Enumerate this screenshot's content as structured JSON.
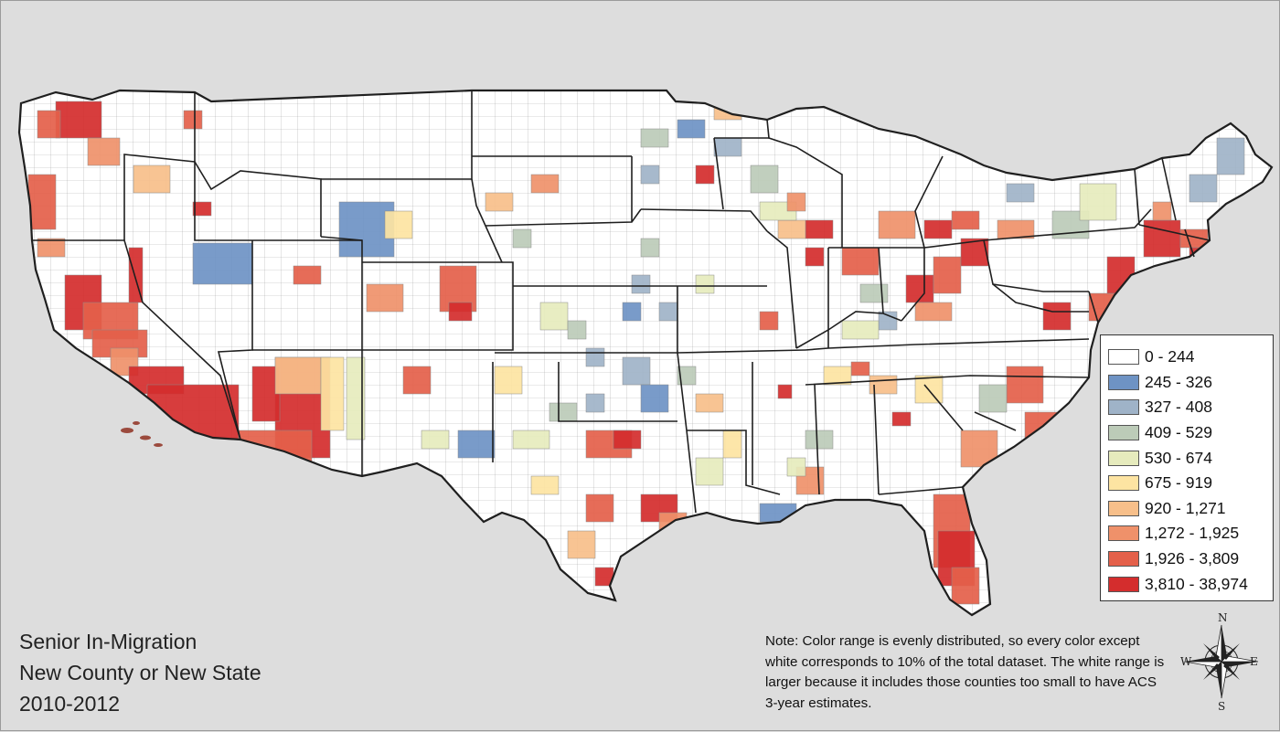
{
  "map": {
    "title_lines": [
      "Senior In-Migration",
      "New County or New State",
      "2010-2012"
    ],
    "note": "Note: Color range is evenly distributed, so every color except white corresponds to 10% of the total dataset. The white range is larger because it includes those counties too small to have ACS 3-year estimates.",
    "background_color": "#dcdcdc",
    "land_color": "#ffffff",
    "border_color": "#1f1f1f",
    "county_line_color": "#9a9a9a"
  },
  "legend": {
    "classes": [
      {
        "label": "0 - 244",
        "color": "#ffffff"
      },
      {
        "label": "245 - 326",
        "color": "#6e93c4"
      },
      {
        "label": "327 - 408",
        "color": "#9fb3c8"
      },
      {
        "label": "409 - 529",
        "color": "#bccbb8"
      },
      {
        "label": "530 - 674",
        "color": "#e6ebbd"
      },
      {
        "label": "675 - 919",
        "color": "#fde4a2"
      },
      {
        "label": "920 - 1,271",
        "color": "#f7bf8a"
      },
      {
        "label": "1,272 - 1,925",
        "color": "#ef916a"
      },
      {
        "label": "1,926 - 3,809",
        "color": "#e4604a"
      },
      {
        "label": "3,810 - 38,974",
        "color": "#d42d2d"
      }
    ]
  },
  "compass": {
    "north": "N",
    "south": "S",
    "east": "E",
    "west": "W"
  }
}
